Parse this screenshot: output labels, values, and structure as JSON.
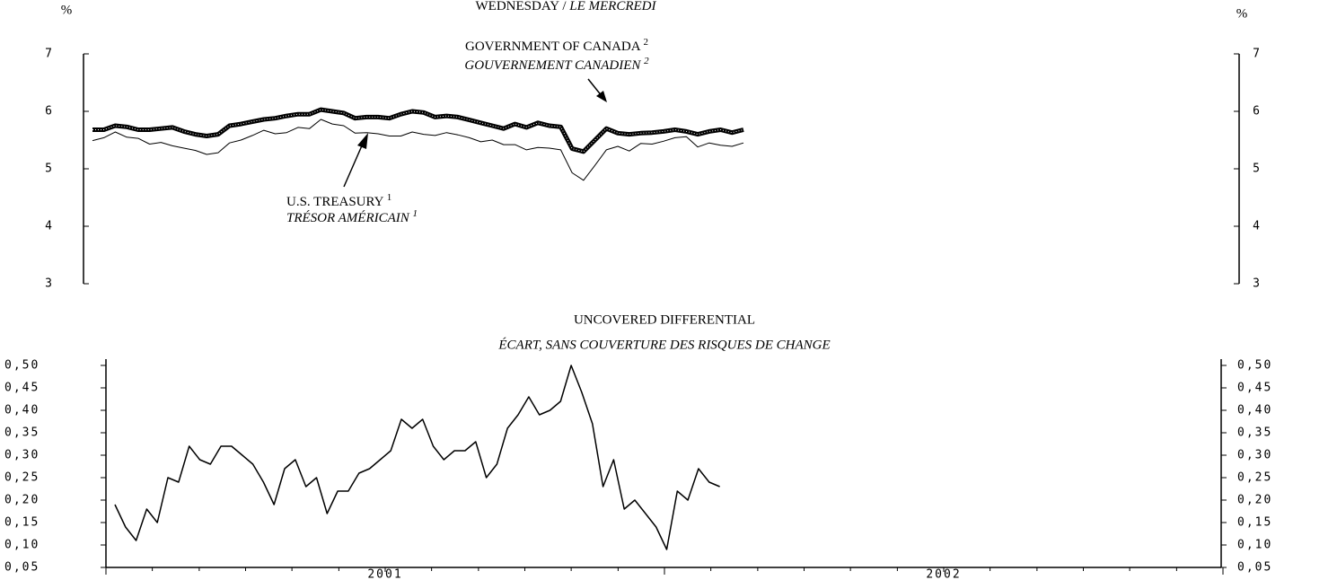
{
  "chart_data": [
    {
      "type": "line",
      "title": "WEDNESDAY /",
      "title_italic": "LE MERCREDI",
      "y_unit": "%",
      "ylim": [
        3,
        7
      ],
      "yticks": [
        3,
        4,
        5,
        6,
        7
      ],
      "series": [
        {
          "name": "GOVERNMENT OF CANADA",
          "name_french": "GOUVERNEMENT CANADIEN",
          "footnote": "2",
          "color": "#000000",
          "line_width": 5,
          "values": [
            5.68,
            5.68,
            5.75,
            5.73,
            5.68,
            5.68,
            5.7,
            5.72,
            5.65,
            5.6,
            5.57,
            5.6,
            5.75,
            5.78,
            5.82,
            5.86,
            5.88,
            5.92,
            5.95,
            5.95,
            6.03,
            6.0,
            5.97,
            5.88,
            5.9,
            5.9,
            5.88,
            5.95,
            6.0,
            5.98,
            5.9,
            5.92,
            5.9,
            5.85,
            5.8,
            5.75,
            5.7,
            5.78,
            5.72,
            5.8,
            5.75,
            5.73,
            5.35,
            5.3,
            5.5,
            5.7,
            5.62,
            5.6,
            5.62,
            5.63,
            5.65,
            5.68,
            5.65,
            5.6,
            5.65,
            5.68,
            5.63,
            5.68
          ]
        },
        {
          "name": "U.S. TREASURY",
          "name_french": "TRÉSOR AMÉRICAIN",
          "footnote": "1",
          "color": "#000000",
          "line_width": 1,
          "values": [
            5.49,
            5.54,
            5.64,
            5.55,
            5.53,
            5.43,
            5.46,
            5.4,
            5.36,
            5.32,
            5.25,
            5.28,
            5.45,
            5.5,
            5.58,
            5.67,
            5.61,
            5.63,
            5.72,
            5.7,
            5.86,
            5.78,
            5.75,
            5.62,
            5.63,
            5.61,
            5.57,
            5.57,
            5.64,
            5.6,
            5.58,
            5.63,
            5.59,
            5.54,
            5.47,
            5.5,
            5.42,
            5.42,
            5.33,
            5.37,
            5.36,
            5.33,
            4.93,
            4.8,
            5.06,
            5.33,
            5.39,
            5.31,
            5.44,
            5.43,
            5.48,
            5.54,
            5.56,
            5.38,
            5.45,
            5.41,
            5.39,
            5.45
          ]
        }
      ]
    },
    {
      "type": "line",
      "title": "UNCOVERED DIFFERENTIAL",
      "subtitle": "ÉCART, SANS COUVERTURE DES RISQUES DE CHANGE",
      "color": "#000000",
      "x": [
        2001.016,
        2001.035,
        2001.054,
        2001.073,
        2001.092,
        2001.111,
        2001.13,
        2001.149,
        2001.168,
        2001.187,
        2001.206,
        2001.225,
        2001.244,
        2001.263,
        2001.282,
        2001.301,
        2001.32,
        2001.339,
        2001.358,
        2001.377,
        2001.396,
        2001.415,
        2001.434,
        2001.453,
        2001.472,
        2001.491,
        2001.51,
        2001.529,
        2001.548,
        2001.567,
        2001.586,
        2001.605,
        2001.624,
        2001.643,
        2001.662,
        2001.681,
        2001.7,
        2001.719,
        2001.738,
        2001.757,
        2001.776,
        2001.795,
        2001.814,
        2001.833,
        2001.852,
        2001.871,
        2001.89,
        2001.909,
        2001.928,
        2001.947,
        2001.966,
        2001.985,
        2002.004,
        2002.023,
        2002.042,
        2002.061,
        2002.08,
        2002.099
      ],
      "values": [
        0.19,
        0.14,
        0.11,
        0.18,
        0.15,
        0.25,
        0.24,
        0.32,
        0.29,
        0.28,
        0.32,
        0.32,
        0.3,
        0.28,
        0.24,
        0.19,
        0.27,
        0.29,
        0.23,
        0.25,
        0.17,
        0.22,
        0.22,
        0.26,
        0.27,
        0.29,
        0.31,
        0.38,
        0.36,
        0.38,
        0.32,
        0.29,
        0.31,
        0.31,
        0.33,
        0.25,
        0.28,
        0.36,
        0.39,
        0.43,
        0.39,
        0.4,
        0.42,
        0.5,
        0.44,
        0.37,
        0.23,
        0.29,
        0.18,
        0.2,
        0.17,
        0.14,
        0.09,
        0.22,
        0.2,
        0.27,
        0.24,
        0.23
      ],
      "xlim": [
        2001,
        2003
      ],
      "xticks": [
        {
          "value": 2001.5,
          "label": "2001"
        },
        {
          "value": 2002.5,
          "label": "2002"
        }
      ],
      "x_minor_ticks": [
        2001,
        2001.083,
        2001.167,
        2001.25,
        2001.333,
        2001.417,
        2001.5,
        2001.583,
        2001.667,
        2001.75,
        2001.833,
        2001.917,
        2002,
        2002.083,
        2002.167,
        2002.25,
        2002.333,
        2002.417,
        2002.5,
        2002.583,
        2002.667,
        2002.75,
        2002.833,
        2002.917,
        2003
      ],
      "ylim": [
        0.05,
        0.5
      ],
      "yticks": [
        {
          "value": 0.05,
          "label": "0,05"
        },
        {
          "value": 0.1,
          "label": "0,10"
        },
        {
          "value": 0.15,
          "label": "0,15"
        },
        {
          "value": 0.2,
          "label": "0,20"
        },
        {
          "value": 0.25,
          "label": "0,25"
        },
        {
          "value": 0.3,
          "label": "0,30"
        },
        {
          "value": 0.35,
          "label": "0,35"
        },
        {
          "value": 0.4,
          "label": "0,40"
        },
        {
          "value": 0.45,
          "label": "0,45"
        },
        {
          "value": 0.5,
          "label": "0,50"
        }
      ]
    }
  ]
}
